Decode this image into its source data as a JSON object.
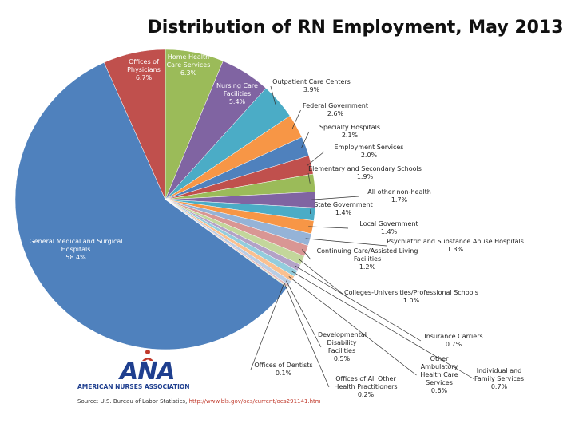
{
  "chart_data": {
    "type": "pie",
    "title": "Distribution of RN Employment, May 2013",
    "categories": [
      "Home Health Care Services",
      "Nursing Care Facilities",
      "Outpatient Care Centers",
      "Federal Government",
      "Specialty Hospitals",
      "Employment Services",
      "Elementary and Secondary Schools",
      "All other non-health",
      "State Government",
      "Local Government",
      "Psychiatric and Substance Abuse Hospitals",
      "Continuing Care/Assisted Living Facilities",
      "Colleges-Universities/Professional Schools",
      "Insurance Carriers",
      "Individual and Family Services",
      "Other Ambulatory Health Care Services",
      "Developmental Disability Facilities",
      "Offices of All Other Health Practitioners",
      "Offices of Dentists",
      "General Medical and Surgical Hospitals",
      "Offices of Physicians"
    ],
    "values": [
      6.3,
      5.4,
      3.9,
      2.6,
      2.1,
      2.0,
      1.9,
      1.7,
      1.4,
      1.4,
      1.3,
      1.2,
      1.0,
      0.7,
      0.7,
      0.6,
      0.5,
      0.2,
      0.1,
      58.4,
      6.7
    ],
    "value_labels": [
      "6.3%",
      "5.4%",
      "3.9%",
      "2.6%",
      "2.1%",
      "2.0%",
      "1.9%",
      "1.7%",
      "1.4%",
      "1.4%",
      "1.3%",
      "1.2%",
      "1.0%",
      "0.7%",
      "0.7%",
      "0.6%",
      "0.5%",
      "0.2%",
      "0.1%",
      "58.4%",
      "6.7%"
    ],
    "colors": [
      "#9bbb59",
      "#8064a2",
      "#4bacc6",
      "#f79646",
      "#4f81bd",
      "#c0504d",
      "#9bbb59",
      "#8064a2",
      "#4bacc6",
      "#f79646",
      "#95b3d7",
      "#d99694",
      "#c3d69b",
      "#b3a2c7",
      "#93cddd",
      "#fac090",
      "#b9cde5",
      "#e6b9b8",
      "#d7e4bd",
      "#4f81bd",
      "#c0504d"
    ]
  },
  "logo_abbr": "ANA",
  "logo_name": "AMERICAN NURSES ASSOCIATION",
  "source": "Source: U.S. Bureau of Labor Statistics,",
  "source_url": "http://www.bls.gov/oes/current/oes291141.htm"
}
